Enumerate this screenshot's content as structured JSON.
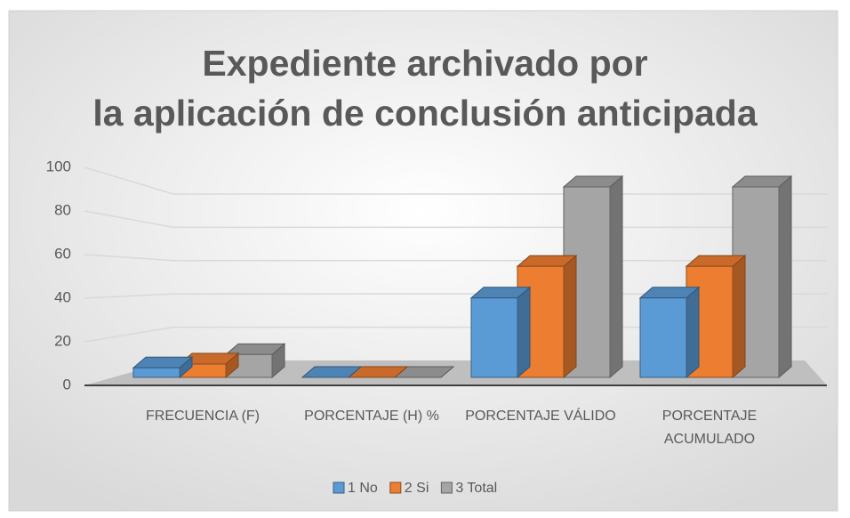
{
  "chart_data": {
    "type": "bar3d",
    "title": "Expediente archivado por la aplicación de conclusión anticipada",
    "categories": [
      "FRECUENCIA (F)",
      "PORCENTAJE (H) %",
      "PORCENTAJE VÁLIDO",
      "PORCENTAJE ACUMULADO"
    ],
    "series": [
      {
        "name": "1 No",
        "color": "#5b9bd5",
        "values": [
          5,
          0,
          41.7,
          41.7
        ]
      },
      {
        "name": "2 Si",
        "color": "#ed7d31",
        "values": [
          7,
          0,
          58.3,
          58.3
        ]
      },
      {
        "name": "3 Total",
        "color": "#a5a5a5",
        "values": [
          12,
          0,
          100,
          100
        ]
      }
    ],
    "ylim": [
      0,
      100
    ],
    "yticks": [
      0,
      20,
      40,
      60,
      80,
      100
    ],
    "grid": true,
    "legend": "bottom"
  }
}
